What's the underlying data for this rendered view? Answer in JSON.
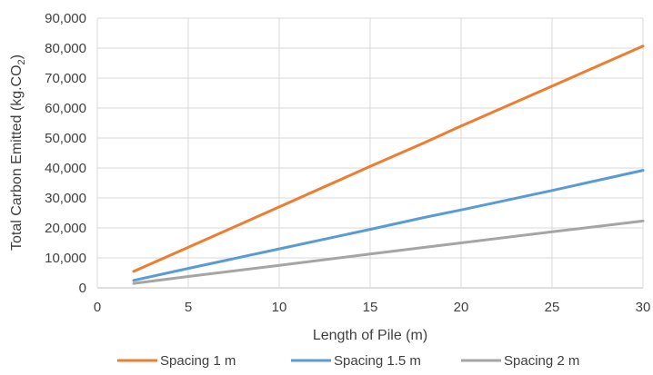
{
  "chart_data": {
    "type": "line",
    "title": "",
    "xlabel": "Length of Pile (m)",
    "ylabel_main": "Total Carbon Emitted (kg.CO",
    "ylabel_sub": "2",
    "ylabel_end": ")",
    "xlim": [
      0,
      30
    ],
    "ylim": [
      0,
      90000
    ],
    "x_ticks": [
      0,
      5,
      10,
      15,
      20,
      25,
      30
    ],
    "x_tick_labels": [
      "0",
      "5",
      "10",
      "15",
      "20",
      "25",
      "30"
    ],
    "y_ticks": [
      0,
      10000,
      20000,
      30000,
      40000,
      50000,
      60000,
      70000,
      80000,
      90000
    ],
    "y_tick_labels": [
      "0",
      "10,000",
      "20,000",
      "30,000",
      "40,000",
      "50,000",
      "60,000",
      "70,000",
      "80,000",
      "90,000"
    ],
    "grid": true,
    "legend_position": "bottom",
    "series": [
      {
        "name": "Spacing 1 m",
        "color": "#ED7D31",
        "x": [
          2,
          5,
          10,
          15,
          18,
          20,
          25,
          30
        ],
        "y": [
          5500,
          13500,
          27000,
          40500,
          48500,
          54000,
          67300,
          80700
        ]
      },
      {
        "name": "Spacing 1.5 m",
        "color": "#5B9BD5",
        "x": [
          2,
          5,
          10,
          15,
          18,
          20,
          25,
          30
        ],
        "y": [
          2500,
          6500,
          13000,
          19500,
          23500,
          26000,
          32500,
          39200
        ]
      },
      {
        "name": "Spacing 2 m",
        "color": "#A5A5A5",
        "x": [
          2,
          5,
          10,
          15,
          18,
          20,
          25,
          30
        ],
        "y": [
          1500,
          3800,
          7500,
          11300,
          13500,
          15000,
          18700,
          22300
        ]
      }
    ]
  }
}
